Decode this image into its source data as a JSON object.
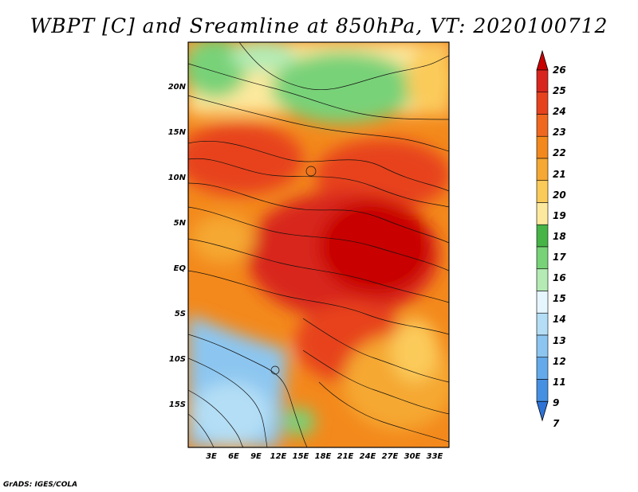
{
  "title": "WBPT [C] and Sreamline at 850hPa, VT: 2020100712",
  "footer": "GrADS: IGES/COLA",
  "lat_labels": [
    "20N",
    "15N",
    "10N",
    "5N",
    "EQ",
    "5S",
    "10S",
    "15S"
  ],
  "lon_labels": [
    "3E",
    "6E",
    "9E",
    "12E",
    "15E",
    "18E",
    "21E",
    "24E",
    "27E",
    "30E",
    "33E"
  ],
  "colorbar": {
    "labels": [
      "26",
      "25",
      "24",
      "23",
      "22",
      "21",
      "20",
      "19",
      "18",
      "17",
      "16",
      "15",
      "14",
      "13",
      "12",
      "11",
      "9",
      "7"
    ],
    "colors": [
      "#c80000",
      "#d8261e",
      "#e7421e",
      "#f06820",
      "#f3891c",
      "#f5a833",
      "#fbcb5a",
      "#fde99e",
      "#46b446",
      "#78d278",
      "#b4ebb4",
      "#e6f6ff",
      "#b4def5",
      "#8cc6f0",
      "#64aaeb",
      "#4690e1",
      "#2d73d7"
    ]
  },
  "chart_data": {
    "type": "map",
    "variable": "WBPT [C]",
    "level": "850hPa",
    "valid_time": "2020100712"
  }
}
